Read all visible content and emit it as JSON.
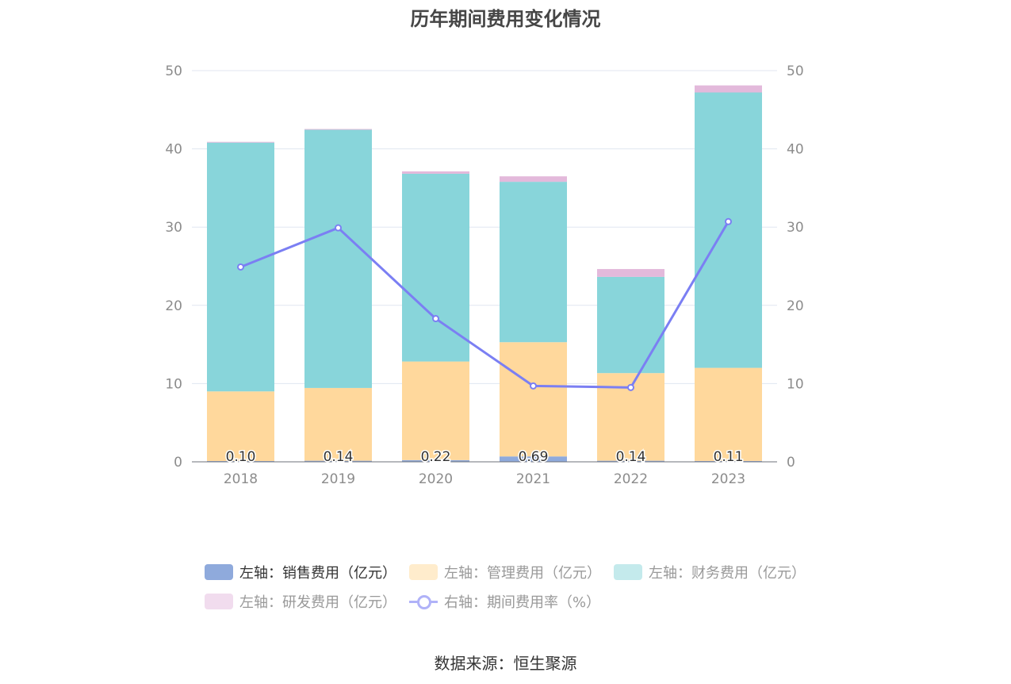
{
  "title": "历年期间费用变化情况",
  "source": "数据来源：恒生聚源",
  "chart_data": {
    "type": "bar",
    "stacked": true,
    "title": "历年期间费用变化情况",
    "categories": [
      "2018",
      "2019",
      "2020",
      "2021",
      "2022",
      "2023"
    ],
    "left_axis": {
      "min": 0,
      "max": 50,
      "ticks": [
        "0",
        "10",
        "20",
        "30",
        "40",
        "50"
      ]
    },
    "right_axis": {
      "min": 0,
      "max": 50,
      "ticks": [
        "0",
        "10",
        "20",
        "30",
        "40",
        "50"
      ]
    },
    "series": [
      {
        "name": "左轴：销售费用（亿元）",
        "axis": "left",
        "type": "bar",
        "color": "#8faadc",
        "values": [
          0.1,
          0.14,
          0.22,
          0.69,
          0.14,
          0.11
        ],
        "labels": [
          "0.10",
          "0.14",
          "0.22",
          "0.69",
          "0.14",
          "0.11"
        ]
      },
      {
        "name": "左轴：管理费用（亿元）",
        "axis": "left",
        "type": "bar",
        "color": "#ffd89c",
        "values": [
          8.9,
          9.3,
          12.6,
          14.6,
          11.2,
          11.9
        ]
      },
      {
        "name": "左轴：财务费用（亿元）",
        "axis": "left",
        "type": "bar",
        "color": "#88d5da",
        "values": [
          31.8,
          33.0,
          24.0,
          20.5,
          12.3,
          35.2
        ]
      },
      {
        "name": "左轴：研发费用（亿元）",
        "axis": "left",
        "type": "bar",
        "color": "#e3b9db",
        "values": [
          0.1,
          0.1,
          0.3,
          0.7,
          1.0,
          0.9
        ]
      },
      {
        "name": "右轴：期间费用率（%）",
        "axis": "right",
        "type": "line",
        "color": "#7b7ff3",
        "values": [
          24.9,
          29.9,
          18.3,
          9.7,
          9.5,
          30.7
        ]
      }
    ]
  },
  "legend": [
    {
      "label": "左轴：销售费用（亿元）",
      "kind": "bar",
      "color": "#8faadc",
      "text_color": "#333333"
    },
    {
      "label": "左轴：管理费用（亿元）",
      "kind": "bar",
      "color": "#ffeccc",
      "text_color": "#999999"
    },
    {
      "label": "左轴：财务费用（亿元）",
      "kind": "bar",
      "color": "#c4eaec",
      "text_color": "#999999"
    },
    {
      "label": "左轴：研发费用（亿元）",
      "kind": "bar",
      "color": "#f1dcee",
      "text_color": "#999999"
    },
    {
      "label": "右轴：期间费用率（%）",
      "kind": "line",
      "color": "#b0b2f8",
      "text_color": "#999999"
    }
  ]
}
